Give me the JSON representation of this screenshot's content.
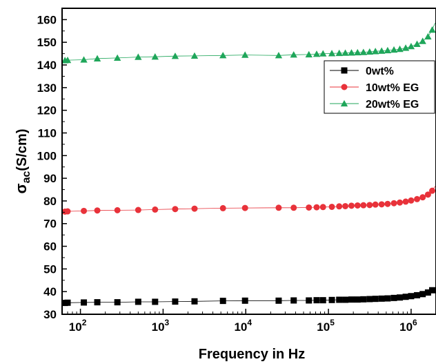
{
  "chart_data": {
    "type": "scatter",
    "x_scale": "log",
    "xlim": [
      60,
      2000000
    ],
    "ylim": [
      30,
      165
    ],
    "xlabel": "Frequency in Hz",
    "ylabel_main": "σ",
    "ylabel_sub": "ac",
    "ylabel_unit": "(S/cm)",
    "y_ticks": [
      30,
      40,
      50,
      60,
      70,
      80,
      90,
      100,
      110,
      120,
      130,
      140,
      150,
      160
    ],
    "x_ticks": [
      {
        "value": 100,
        "base": "10",
        "exp": "2"
      },
      {
        "value": 1000,
        "base": "10",
        "exp": "3"
      },
      {
        "value": 10000,
        "base": "10",
        "exp": "4"
      },
      {
        "value": 100000,
        "base": "10",
        "exp": "5"
      },
      {
        "value": 1000000,
        "base": "10",
        "exp": "6"
      }
    ],
    "grid": false,
    "legend_position": "top-right",
    "series": [
      {
        "name": "0wt%",
        "marker": "square",
        "color": "#000000",
        "points": [
          [
            65,
            35.0
          ],
          [
            70,
            35.1
          ],
          [
            110,
            35.2
          ],
          [
            160,
            35.3
          ],
          [
            280,
            35.3
          ],
          [
            500,
            35.5
          ],
          [
            800,
            35.5
          ],
          [
            1400,
            35.6
          ],
          [
            2400,
            35.7
          ],
          [
            5300,
            35.9
          ],
          [
            9800,
            36.0
          ],
          [
            25000,
            36.0
          ],
          [
            38000,
            36.1
          ],
          [
            58000,
            36.1
          ],
          [
            72000,
            36.2
          ],
          [
            86000,
            36.2
          ],
          [
            110000,
            36.3
          ],
          [
            135000,
            36.4
          ],
          [
            160000,
            36.4
          ],
          [
            190000,
            36.5
          ],
          [
            225000,
            36.5
          ],
          [
            265000,
            36.6
          ],
          [
            315000,
            36.7
          ],
          [
            370000,
            36.8
          ],
          [
            440000,
            36.9
          ],
          [
            520000,
            37.0
          ],
          [
            620000,
            37.2
          ],
          [
            730000,
            37.4
          ],
          [
            860000,
            37.7
          ],
          [
            1000000,
            38.0
          ],
          [
            1180000,
            38.4
          ],
          [
            1380000,
            38.9
          ],
          [
            1600000,
            39.6
          ],
          [
            1800000,
            40.6
          ],
          [
            1950000,
            41.3
          ]
        ]
      },
      {
        "name": "10wt% EG",
        "marker": "circle",
        "color": "#e8323a",
        "points": [
          [
            65,
            75.3
          ],
          [
            70,
            75.4
          ],
          [
            110,
            75.6
          ],
          [
            160,
            75.8
          ],
          [
            280,
            75.9
          ],
          [
            500,
            76.0
          ],
          [
            800,
            76.2
          ],
          [
            1400,
            76.4
          ],
          [
            2400,
            76.6
          ],
          [
            5300,
            76.8
          ],
          [
            9800,
            76.9
          ],
          [
            25000,
            77.0
          ],
          [
            38000,
            77.0
          ],
          [
            58000,
            77.1
          ],
          [
            72000,
            77.2
          ],
          [
            86000,
            77.3
          ],
          [
            110000,
            77.4
          ],
          [
            135000,
            77.6
          ],
          [
            160000,
            77.7
          ],
          [
            190000,
            77.9
          ],
          [
            225000,
            78.0
          ],
          [
            265000,
            78.1
          ],
          [
            315000,
            78.2
          ],
          [
            370000,
            78.4
          ],
          [
            440000,
            78.5
          ],
          [
            520000,
            78.7
          ],
          [
            620000,
            79.0
          ],
          [
            730000,
            79.3
          ],
          [
            860000,
            79.7
          ],
          [
            1000000,
            80.2
          ],
          [
            1180000,
            80.8
          ],
          [
            1380000,
            81.6
          ],
          [
            1600000,
            82.8
          ],
          [
            1800000,
            84.5
          ],
          [
            1950000,
            86.5
          ]
        ]
      },
      {
        "name": "20wt% EG",
        "marker": "triangle",
        "color": "#1fa65a",
        "points": [
          [
            65,
            142.0
          ],
          [
            70,
            142.1
          ],
          [
            110,
            142.3
          ],
          [
            160,
            142.8
          ],
          [
            280,
            143.1
          ],
          [
            500,
            143.5
          ],
          [
            800,
            143.6
          ],
          [
            1400,
            143.9
          ],
          [
            2400,
            144.0
          ],
          [
            5300,
            144.2
          ],
          [
            9800,
            144.4
          ],
          [
            25000,
            144.2
          ],
          [
            38000,
            144.5
          ],
          [
            58000,
            144.6
          ],
          [
            72000,
            144.8
          ],
          [
            86000,
            145.0
          ],
          [
            110000,
            145.1
          ],
          [
            135000,
            145.2
          ],
          [
            160000,
            145.3
          ],
          [
            190000,
            145.4
          ],
          [
            225000,
            145.5
          ],
          [
            265000,
            145.6
          ],
          [
            315000,
            145.8
          ],
          [
            370000,
            146.0
          ],
          [
            440000,
            146.2
          ],
          [
            520000,
            146.4
          ],
          [
            620000,
            146.7
          ],
          [
            730000,
            147.0
          ],
          [
            860000,
            147.5
          ],
          [
            1000000,
            148.2
          ],
          [
            1180000,
            149.2
          ],
          [
            1380000,
            150.5
          ],
          [
            1600000,
            152.5
          ],
          [
            1800000,
            155.5
          ],
          [
            1950000,
            158.5
          ]
        ]
      }
    ]
  }
}
